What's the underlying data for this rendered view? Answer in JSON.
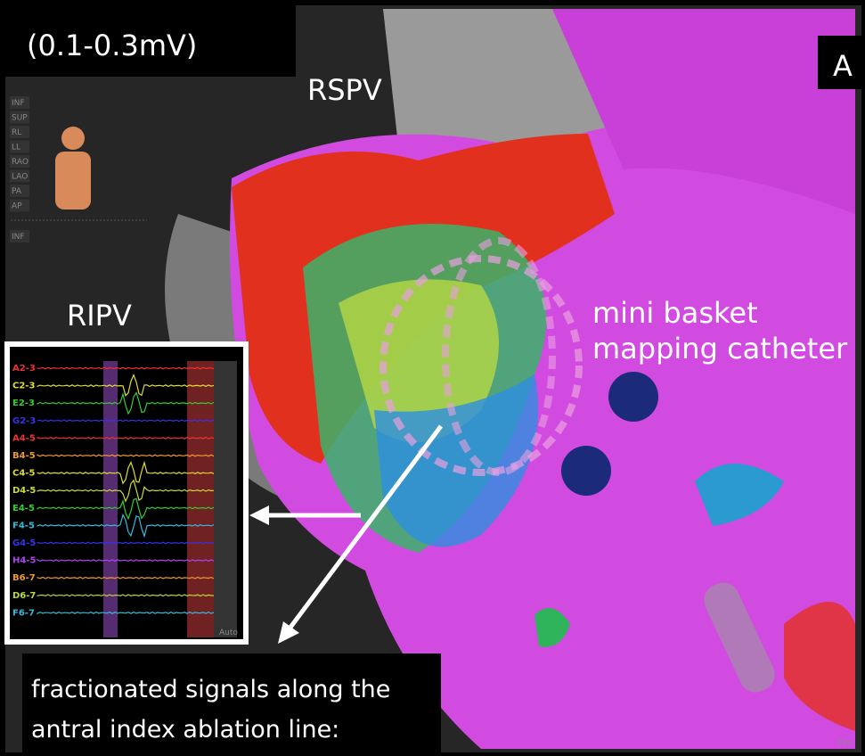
{
  "panel": {
    "range_label": "(0.1-0.3mV)",
    "panel_letter": "A"
  },
  "labels": {
    "rspv": "RSPV",
    "ripv": "RIPV",
    "catheter": [
      "mini basket",
      "mapping catheter"
    ]
  },
  "view_buttons": [
    "INF",
    "SUP",
    "RL",
    "LL",
    "RAO",
    "LAO",
    "PA",
    "AP",
    "INF"
  ],
  "inset": {
    "channels": [
      "A2-3",
      "C2-3",
      "E2-3",
      "G2-3",
      "A4-5",
      "B4-5",
      "C4-5",
      "D4-5",
      "E4-5",
      "F4-5",
      "G4-5",
      "H4-5",
      "B6-7",
      "D6-7",
      "F6-7"
    ],
    "button": "Auto"
  },
  "corner_text": "Tim",
  "caption": [
    "fractionated signals along the",
    "antral index ablation line:"
  ]
}
